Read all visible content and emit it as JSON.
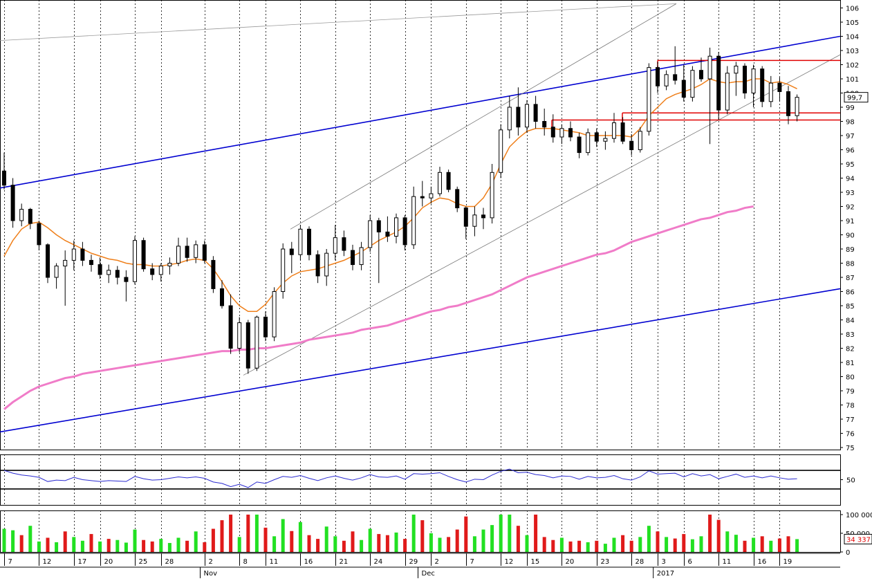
{
  "chart_data": {
    "type": "candlestick",
    "price_panel": {
      "yticks": [
        "106",
        "105",
        "104",
        "103",
        "102",
        "101",
        "100",
        "99",
        "98",
        "97",
        "96",
        "95",
        "94",
        "93",
        "92",
        "91",
        "90",
        "89",
        "88",
        "87",
        "86",
        "85",
        "84",
        "83",
        "82",
        "81",
        "80",
        "79",
        "78",
        "77",
        "76",
        "75"
      ],
      "ylim": [
        75,
        106
      ],
      "last_price_label": "99,7",
      "last_price": 99.7,
      "ohlc": [
        [
          94.5,
          95.8,
          93.2,
          93.5
        ],
        [
          93.5,
          94.0,
          90.5,
          91.0
        ],
        [
          91.0,
          92.2,
          90.6,
          91.8
        ],
        [
          91.8,
          91.9,
          90.4,
          90.8
        ],
        [
          90.8,
          91.0,
          88.9,
          89.3
        ],
        [
          89.3,
          89.4,
          86.6,
          87.0
        ],
        [
          87.0,
          88.0,
          86.2,
          87.8
        ],
        [
          87.8,
          88.9,
          85.0,
          88.2
        ],
        [
          88.2,
          89.6,
          87.5,
          89.0
        ],
        [
          89.0,
          89.5,
          87.8,
          88.2
        ],
        [
          88.2,
          88.6,
          87.4,
          87.9
        ],
        [
          87.9,
          88.4,
          86.9,
          87.2
        ],
        [
          87.2,
          87.9,
          86.6,
          87.5
        ],
        [
          87.5,
          87.8,
          86.5,
          87.0
        ],
        [
          87.0,
          87.5,
          85.3,
          86.7
        ],
        [
          86.7,
          89.9,
          86.5,
          89.6
        ],
        [
          89.6,
          89.8,
          87.4,
          87.6
        ],
        [
          87.6,
          88.0,
          86.8,
          87.2
        ],
        [
          87.2,
          88.0,
          86.7,
          87.8
        ],
        [
          87.8,
          88.4,
          87.2,
          88.0
        ],
        [
          88.0,
          89.8,
          87.8,
          89.2
        ],
        [
          89.2,
          89.8,
          88.1,
          88.4
        ],
        [
          88.4,
          89.6,
          88.0,
          89.3
        ],
        [
          89.3,
          89.6,
          88.0,
          88.2
        ],
        [
          88.2,
          88.5,
          85.9,
          86.2
        ],
        [
          86.2,
          86.8,
          84.8,
          85.0
        ],
        [
          85.0,
          85.8,
          81.6,
          82.0
        ],
        [
          82.0,
          84.2,
          81.7,
          83.8
        ],
        [
          83.8,
          84.0,
          80.2,
          80.6
        ],
        [
          80.6,
          84.3,
          80.4,
          84.2
        ],
        [
          84.2,
          84.6,
          82.5,
          82.8
        ],
        [
          82.8,
          86.3,
          82.5,
          86.0
        ],
        [
          86.0,
          89.4,
          85.5,
          89.0
        ],
        [
          89.0,
          89.5,
          87.3,
          88.6
        ],
        [
          88.6,
          90.7,
          88.2,
          90.4
        ],
        [
          90.4,
          90.6,
          88.2,
          88.6
        ],
        [
          88.6,
          88.9,
          86.6,
          87.1
        ],
        [
          87.1,
          89.0,
          86.4,
          88.7
        ],
        [
          88.7,
          90.7,
          88.2,
          89.8
        ],
        [
          89.8,
          90.3,
          88.5,
          88.9
        ],
        [
          88.9,
          89.3,
          87.5,
          87.9
        ],
        [
          87.9,
          89.5,
          87.5,
          89.1
        ],
        [
          89.1,
          91.4,
          88.8,
          91.0
        ],
        [
          91.0,
          91.2,
          86.6,
          90.2
        ],
        [
          90.2,
          91.3,
          89.5,
          89.9
        ],
        [
          89.9,
          91.5,
          89.4,
          91.2
        ],
        [
          91.2,
          91.4,
          88.9,
          89.3
        ],
        [
          89.3,
          93.4,
          89.0,
          92.7
        ],
        [
          92.7,
          93.8,
          92.0,
          92.6
        ],
        [
          92.6,
          93.4,
          92.2,
          92.9
        ],
        [
          92.9,
          94.8,
          92.7,
          94.4
        ],
        [
          94.4,
          94.6,
          93.0,
          93.2
        ],
        [
          93.2,
          93.4,
          91.6,
          91.9
        ],
        [
          91.9,
          92.0,
          89.7,
          90.6
        ],
        [
          90.6,
          92.0,
          89.9,
          91.4
        ],
        [
          91.4,
          91.9,
          90.4,
          91.2
        ],
        [
          91.2,
          95.0,
          90.8,
          94.4
        ],
        [
          94.4,
          97.8,
          94.0,
          97.4
        ],
        [
          97.4,
          99.8,
          96.8,
          99.0
        ],
        [
          99.0,
          100.4,
          97.0,
          97.6
        ],
        [
          97.6,
          99.5,
          97.2,
          99.2
        ],
        [
          99.2,
          99.8,
          97.5,
          98.0
        ],
        [
          98.0,
          98.9,
          97.0,
          97.6
        ],
        [
          97.6,
          98.5,
          96.5,
          96.9
        ],
        [
          96.9,
          97.8,
          96.4,
          97.5
        ],
        [
          97.5,
          98.0,
          96.6,
          96.9
        ],
        [
          96.9,
          97.2,
          95.4,
          95.8
        ],
        [
          95.8,
          97.5,
          95.6,
          97.2
        ],
        [
          97.2,
          97.5,
          96.2,
          96.6
        ],
        [
          96.6,
          97.3,
          96.0,
          96.8
        ],
        [
          96.8,
          98.6,
          96.5,
          97.9
        ],
        [
          97.9,
          98.3,
          96.4,
          96.6
        ],
        [
          96.6,
          97.1,
          95.6,
          96.0
        ],
        [
          96.0,
          97.6,
          95.8,
          97.3
        ],
        [
          97.3,
          102.1,
          97.0,
          101.8
        ],
        [
          101.8,
          102.2,
          100.0,
          100.5
        ],
        [
          100.5,
          101.6,
          100.2,
          101.3
        ],
        [
          101.3,
          103.3,
          100.6,
          100.9
        ],
        [
          100.9,
          102.0,
          99.4,
          99.7
        ],
        [
          99.7,
          101.9,
          99.4,
          101.6
        ],
        [
          101.6,
          102.5,
          100.8,
          101.0
        ],
        [
          101.0,
          103.2,
          96.4,
          102.6
        ],
        [
          102.6,
          102.9,
          98.1,
          98.8
        ],
        [
          98.8,
          101.9,
          98.5,
          101.4
        ],
        [
          101.4,
          102.2,
          99.8,
          101.9
        ],
        [
          101.9,
          102.1,
          99.6,
          100.0
        ],
        [
          100.0,
          102.0,
          99.0,
          101.7
        ],
        [
          101.7,
          101.9,
          99.0,
          99.4
        ],
        [
          99.4,
          101.2,
          99.0,
          100.7
        ],
        [
          100.7,
          101.1,
          99.4,
          100.1
        ],
        [
          100.1,
          100.5,
          97.8,
          98.4
        ],
        [
          98.4,
          99.9,
          98.0,
          99.7
        ]
      ],
      "moving_average_short": [
        88.5,
        89.6,
        90.4,
        90.8,
        90.9,
        90.5,
        90.0,
        89.6,
        89.3,
        89.0,
        88.7,
        88.5,
        88.3,
        88.2,
        88.0,
        87.9,
        87.9,
        87.8,
        87.8,
        87.9,
        88.0,
        88.2,
        88.3,
        88.2,
        87.6,
        86.7,
        85.7,
        85.0,
        84.6,
        84.6,
        85.1,
        85.9,
        86.6,
        87.1,
        87.4,
        87.5,
        87.6,
        87.8,
        88.0,
        88.2,
        88.5,
        88.8,
        89.2,
        89.6,
        89.9,
        90.2,
        90.6,
        91.2,
        91.9,
        92.3,
        92.6,
        92.5,
        92.2,
        92.0,
        92.0,
        92.6,
        93.6,
        95.0,
        96.2,
        96.8,
        97.3,
        97.5,
        97.5,
        97.5,
        97.4,
        97.3,
        97.2,
        97.0,
        97.0,
        97.0,
        97.0,
        97.0,
        96.9,
        97.5,
        98.4,
        99.0,
        99.6,
        99.9,
        100.1,
        100.3,
        100.6,
        101.0,
        100.8,
        100.7,
        100.8,
        100.8,
        101.0,
        101.0,
        100.7,
        100.8,
        100.6,
        100.3
      ],
      "moving_average_long": [
        77.7,
        78.2,
        78.6,
        79.0,
        79.3,
        79.5,
        79.7,
        79.9,
        80.0,
        80.2,
        80.3,
        80.4,
        80.5,
        80.6,
        80.7,
        80.8,
        80.9,
        81.0,
        81.1,
        81.2,
        81.3,
        81.4,
        81.5,
        81.6,
        81.7,
        81.8,
        81.8,
        81.9,
        81.9,
        82.0,
        82.0,
        82.1,
        82.2,
        82.3,
        82.4,
        82.6,
        82.7,
        82.8,
        82.9,
        83.0,
        83.1,
        83.3,
        83.4,
        83.5,
        83.6,
        83.8,
        84.0,
        84.2,
        84.4,
        84.6,
        84.7,
        84.9,
        85.0,
        85.2,
        85.4,
        85.6,
        85.8,
        86.1,
        86.4,
        86.7,
        87.0,
        87.2,
        87.4,
        87.6,
        87.8,
        88.0,
        88.2,
        88.4,
        88.6,
        88.7,
        88.9,
        89.2,
        89.5,
        89.7,
        89.9,
        90.1,
        90.3,
        90.5,
        90.7,
        90.9,
        91.1,
        91.2,
        91.4,
        91.6,
        91.7,
        91.9,
        92.0
      ]
    },
    "rsi_panel": {
      "ytick": "50",
      "ylim": [
        0,
        100
      ],
      "upper_band": 70,
      "lower_band": 30,
      "values": [
        70,
        64,
        60,
        58,
        55,
        46,
        49,
        48,
        55,
        50,
        48,
        46,
        48,
        47,
        46,
        57,
        52,
        49,
        50,
        53,
        56,
        54,
        56,
        53,
        45,
        42,
        35,
        40,
        33,
        45,
        42,
        50,
        57,
        55,
        59,
        53,
        48,
        54,
        58,
        53,
        49,
        54,
        61,
        56,
        55,
        58,
        51,
        63,
        62,
        63,
        65,
        57,
        50,
        45,
        51,
        50,
        60,
        68,
        73,
        65,
        66,
        61,
        59,
        54,
        58,
        57,
        51,
        57,
        54,
        55,
        59,
        52,
        49,
        56,
        69,
        62,
        63,
        64,
        56,
        63,
        58,
        61,
        52,
        57,
        62,
        55,
        58,
        54,
        58,
        54,
        51,
        52
      ]
    },
    "volume_panel": {
      "yticks": [
        "100 000",
        "50 000",
        "0"
      ],
      "ylim": [
        0,
        100000
      ],
      "last_volume_label": "34 337",
      "last_volume": 34337,
      "values": [
        62000,
        58000,
        45000,
        70000,
        28000,
        38000,
        26000,
        55000,
        40000,
        30000,
        48000,
        28000,
        35000,
        32000,
        25000,
        60000,
        32000,
        28000,
        35000,
        24000,
        38000,
        30000,
        55000,
        26000,
        62000,
        85000,
        100000,
        40000,
        100000,
        100000,
        65000,
        42000,
        88000,
        56000,
        80000,
        45000,
        35000,
        68000,
        42000,
        30000,
        55000,
        32000,
        62000,
        48000,
        45000,
        52000,
        35000,
        100000,
        85000,
        50000,
        38000,
        40000,
        60000,
        95000,
        42000,
        60000,
        72000,
        100000,
        100000,
        70000,
        45000,
        100000,
        40000,
        32000,
        38000,
        28000,
        30000,
        26000,
        30000,
        22000,
        38000,
        45000,
        30000,
        40000,
        70000,
        55000,
        40000,
        36000,
        48000,
        34000,
        42000,
        100000,
        86000,
        55000,
        46000,
        30000,
        38000,
        42000,
        30000,
        36000,
        42000,
        34337
      ],
      "colors": [
        "g",
        "g",
        "r",
        "g",
        "g",
        "r",
        "g",
        "r",
        "g",
        "g",
        "r",
        "g",
        "r",
        "g",
        "g",
        "g",
        "r",
        "r",
        "g",
        "g",
        "g",
        "r",
        "g",
        "r",
        "r",
        "r",
        "r",
        "g",
        "r",
        "g",
        "r",
        "g",
        "g",
        "r",
        "g",
        "r",
        "r",
        "g",
        "g",
        "r",
        "r",
        "g",
        "g",
        "r",
        "r",
        "g",
        "r",
        "g",
        "r",
        "g",
        "g",
        "r",
        "r",
        "r",
        "g",
        "g",
        "g",
        "g",
        "g",
        "r",
        "g",
        "r",
        "r",
        "r",
        "g",
        "r",
        "r",
        "g",
        "r",
        "g",
        "g",
        "r",
        "r",
        "g",
        "g",
        "r",
        "g",
        "r",
        "r",
        "g",
        "g",
        "r",
        "r",
        "g",
        "g",
        "r",
        "g",
        "r",
        "g",
        "r",
        "r",
        "g"
      ]
    },
    "x_tick_labels": [
      "7",
      "12",
      "17",
      "20",
      "25",
      "28",
      "2",
      "8",
      "11",
      "16",
      "21",
      "24",
      "29",
      "2",
      "7",
      "12",
      "15",
      "20",
      "23",
      "28",
      "3",
      "6",
      "11",
      "16",
      "19"
    ],
    "month_labels": [
      "Nov",
      "Dec",
      "2017"
    ],
    "colors": {
      "up_candle": "#ffffff",
      "down_candle": "#000000",
      "ma_short": "#ef7f1a",
      "ma_long": "#f07cc8",
      "channel": "#0000d0",
      "resistance": "#e00000",
      "rsi_line": "#2a2ad0",
      "volume_up": "#22e022",
      "volume_down": "#e01a1a"
    }
  }
}
